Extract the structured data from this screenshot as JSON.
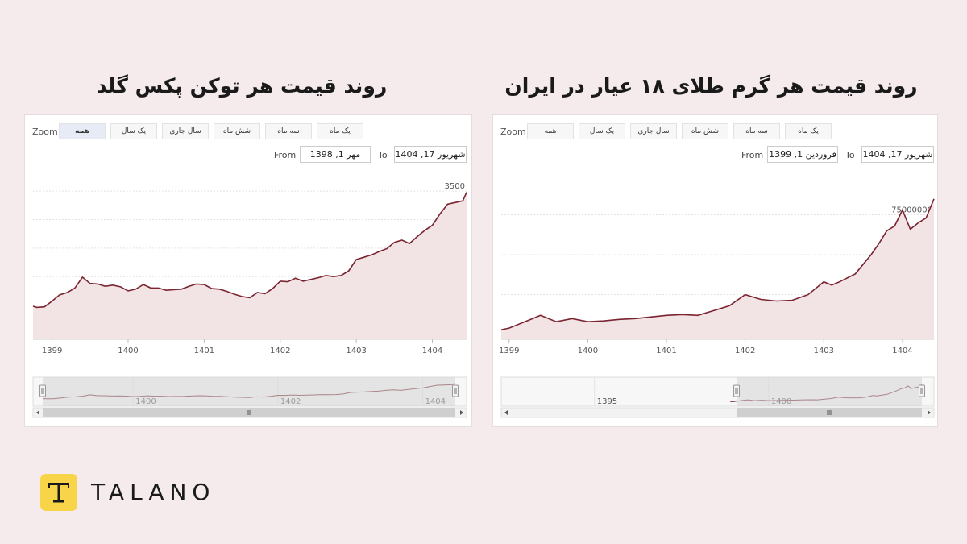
{
  "left": {
    "title": "روند قیمت هر توکن پکس گلد",
    "zoom_label": "Zoom",
    "zoom_buttons": [
      {
        "label": "همه",
        "active": true
      },
      {
        "label": "یک سال",
        "active": false
      },
      {
        "label": "سال جاری",
        "active": false
      },
      {
        "label": "شش ماه",
        "active": false
      },
      {
        "label": "سه ماه",
        "active": false
      },
      {
        "label": "یک ماه",
        "active": false
      }
    ],
    "from_label": "From",
    "from_value": "مهر 1, 1398",
    "to_label": "To",
    "to_value": "شهریور 17, 1404"
  },
  "right": {
    "title": "روند قیمت هر گرم طلای ۱۸ عیار در ایران",
    "zoom_label": "Zoom",
    "zoom_buttons": [
      {
        "label": "همه",
        "active": false
      },
      {
        "label": "یک سال",
        "active": false
      },
      {
        "label": "سال جاری",
        "active": false
      },
      {
        "label": "شش ماه",
        "active": false
      },
      {
        "label": "سه ماه",
        "active": false
      },
      {
        "label": "یک ماه",
        "active": false
      }
    ],
    "from_label": "From",
    "from_value": "فروردین 1, 1399",
    "to_label": "To",
    "to_value": "شهریور 17, 1404"
  },
  "brand": {
    "name": "TALANO",
    "logo_letter": "T",
    "logo_color": "#f8d548"
  },
  "colors": {
    "line": "#7a2430",
    "fill": "#f2e3e5",
    "navigator_mask": "#d6d6d6"
  },
  "chart_data": [
    {
      "type": "area",
      "title": "روند قیمت هر توکن پکس گلد",
      "xlabel": "",
      "ylabel": "",
      "xlim": [
        1398.75,
        1404.45
      ],
      "ylim": [
        900,
        3700
      ],
      "yticks": [
        1000,
        1500,
        2000,
        2500,
        3000,
        3500
      ],
      "xticks": [
        1399,
        1400,
        1401,
        1402,
        1403,
        1404
      ],
      "navigator_labels": [
        1400,
        1402,
        1404
      ],
      "grid": true,
      "x": [
        1398.75,
        1398.8,
        1398.9,
        1399.0,
        1399.1,
        1399.2,
        1399.3,
        1399.4,
        1399.5,
        1399.6,
        1399.7,
        1399.8,
        1399.9,
        1400.0,
        1400.1,
        1400.2,
        1400.3,
        1400.4,
        1400.5,
        1400.6,
        1400.7,
        1400.8,
        1400.9,
        1401.0,
        1401.1,
        1401.2,
        1401.3,
        1401.4,
        1401.5,
        1401.6,
        1401.7,
        1401.8,
        1401.9,
        1402.0,
        1402.1,
        1402.2,
        1402.3,
        1402.4,
        1402.5,
        1402.6,
        1402.7,
        1402.8,
        1402.9,
        1403.0,
        1403.1,
        1403.2,
        1403.3,
        1403.4,
        1403.5,
        1403.6,
        1403.7,
        1403.8,
        1403.9,
        1404.0,
        1404.1,
        1404.2,
        1404.3,
        1404.4,
        1404.45
      ],
      "series": [
        {
          "values": [
            1480,
            1460,
            1470,
            1570,
            1680,
            1720,
            1800,
            1990,
            1880,
            1870,
            1830,
            1850,
            1820,
            1750,
            1780,
            1860,
            1800,
            1800,
            1760,
            1770,
            1780,
            1830,
            1870,
            1860,
            1790,
            1780,
            1740,
            1690,
            1650,
            1630,
            1720,
            1700,
            1790,
            1920,
            1910,
            1970,
            1920,
            1950,
            1980,
            2020,
            2000,
            2020,
            2100,
            2300,
            2340,
            2380,
            2440,
            2490,
            2600,
            2640,
            2580,
            2700,
            2810,
            2900,
            3100,
            3270,
            3300,
            3330,
            3480
          ]
        }
      ]
    },
    {
      "type": "area",
      "title": "روند قیمت هر گرم طلای ۱۸ عیار در ایران",
      "xlabel": "",
      "ylabel": "",
      "xlim": [
        1398.9,
        1404.4
      ],
      "ylim": [
        -3000000,
        97000000
      ],
      "yticks": [
        0,
        25000000,
        50000000,
        75000000
      ],
      "xticks": [
        1399,
        1400,
        1401,
        1402,
        1403,
        1404
      ],
      "navigator_labels": [
        1395,
        1400
      ],
      "grid": true,
      "x": [
        1398.9,
        1399.0,
        1399.2,
        1399.4,
        1399.6,
        1399.8,
        1400.0,
        1400.2,
        1400.4,
        1400.6,
        1400.8,
        1401.0,
        1401.2,
        1401.4,
        1401.6,
        1401.8,
        1402.0,
        1402.2,
        1402.4,
        1402.6,
        1402.8,
        1403.0,
        1403.1,
        1403.2,
        1403.4,
        1403.6,
        1403.7,
        1403.8,
        1403.9,
        1404.0,
        1404.05,
        1404.1,
        1404.2,
        1404.3,
        1404.4
      ],
      "series": [
        {
          "values": [
            3000000,
            4000000,
            8000000,
            12000000,
            8000000,
            10000000,
            8000000,
            8500000,
            9500000,
            10000000,
            11000000,
            12000000,
            12500000,
            12000000,
            15000000,
            18000000,
            25000000,
            22000000,
            21000000,
            21500000,
            25000000,
            33000000,
            31000000,
            33000000,
            38000000,
            50000000,
            57000000,
            65000000,
            68000000,
            78000000,
            72000000,
            66000000,
            70000000,
            73000000,
            85000000
          ]
        }
      ]
    }
  ]
}
